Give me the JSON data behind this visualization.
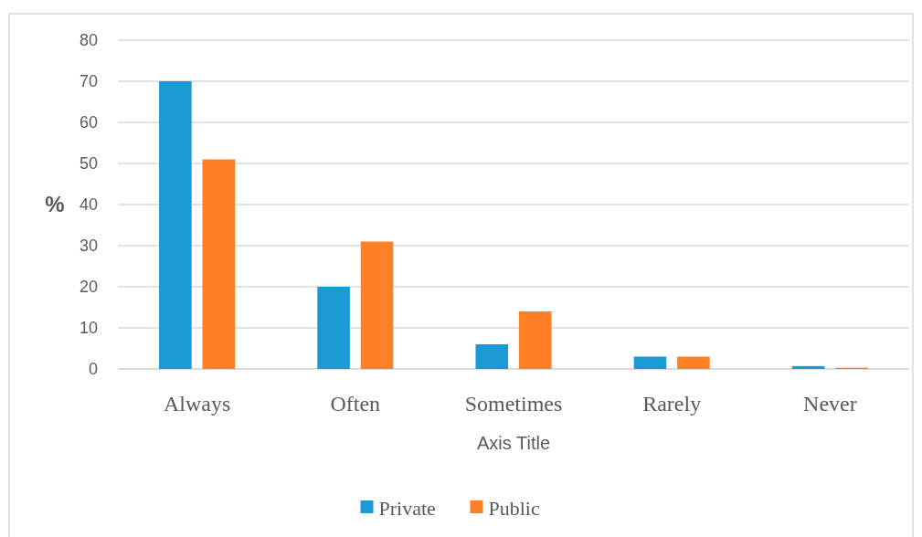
{
  "chart_data": {
    "type": "bar",
    "xlabel": "Axis Title",
    "ylabel": "%",
    "categories": [
      "Always",
      "Often",
      "Sometimes",
      "Rarely",
      "Never"
    ],
    "series": [
      {
        "name": "Private",
        "color": "#1b9ad6",
        "values": [
          70,
          20,
          6,
          3,
          0.7
        ]
      },
      {
        "name": "Public",
        "color": "#fe7f25",
        "values": [
          51,
          31,
          14,
          3,
          0.3
        ]
      }
    ],
    "ylim": [
      0,
      80
    ],
    "yticks": [
      0,
      10,
      20,
      30,
      40,
      50,
      60,
      70,
      80
    ],
    "grid": "y",
    "legend": "bottom"
  }
}
